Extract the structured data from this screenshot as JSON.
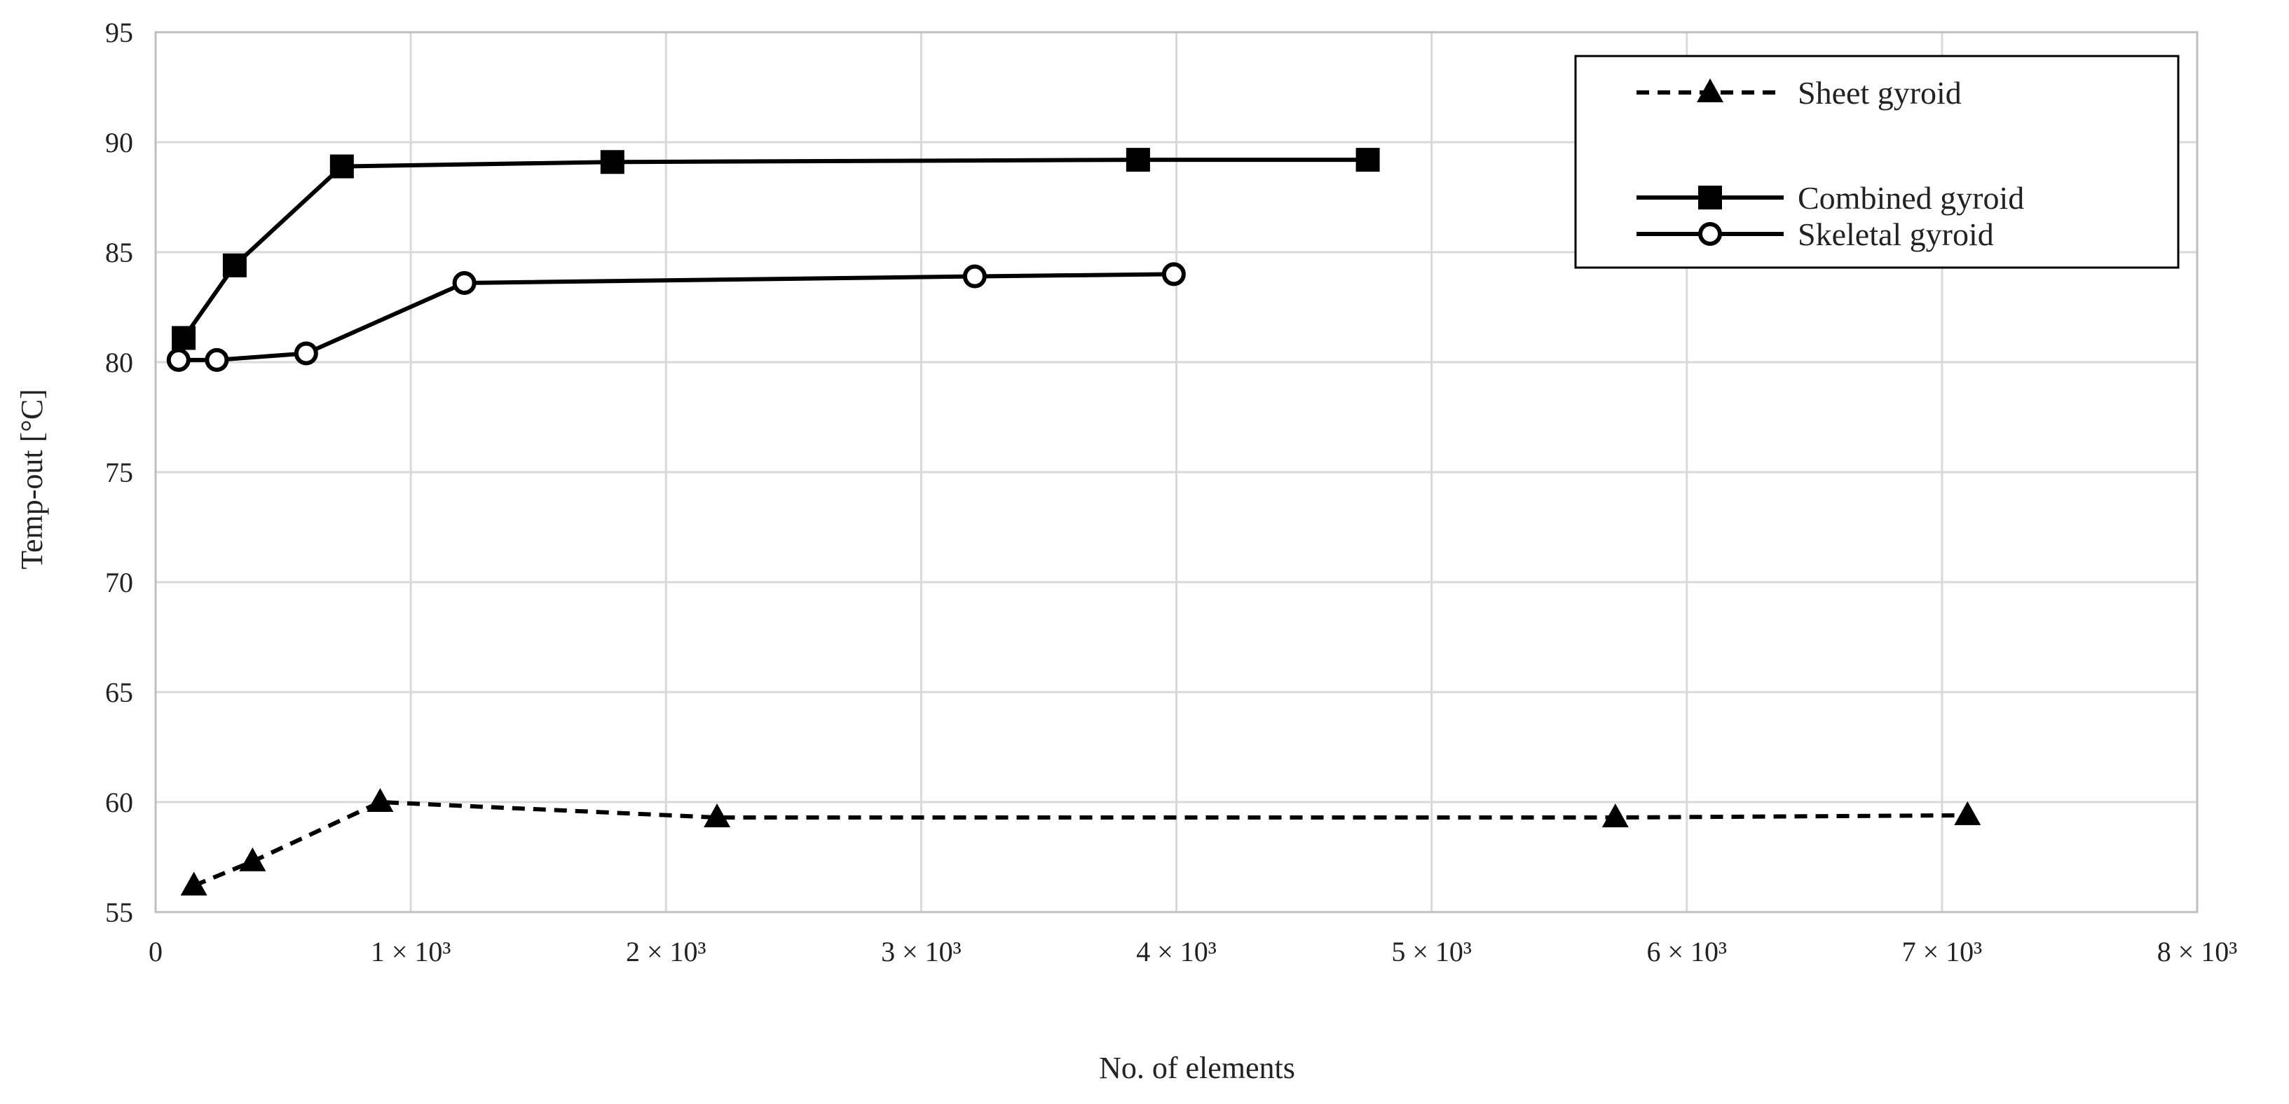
{
  "chart_data": {
    "type": "line",
    "title": "",
    "xlabel": "No. of elements",
    "ylabel": "Temp-out [°C]",
    "xlim": [
      0,
      8000
    ],
    "ylim": [
      55,
      95
    ],
    "grid": true,
    "legend_position": "top-right",
    "x_tick_values": [
      0,
      1000,
      2000,
      3000,
      4000,
      5000,
      6000,
      7000,
      8000
    ],
    "x_tick_labels": [
      "0",
      "1 × 10³",
      "2 × 10³",
      "3 × 10³",
      "4 × 10³",
      "5 × 10³",
      "6 × 10³",
      "7 × 10³",
      "8 × 10³"
    ],
    "y_tick_values": [
      55,
      60,
      65,
      70,
      75,
      80,
      85,
      90,
      95
    ],
    "y_tick_labels": [
      "55",
      "60",
      "65",
      "70",
      "75",
      "80",
      "85",
      "90",
      "95"
    ],
    "series": [
      {
        "name": "Sheet gyroid",
        "line_style": "dashed",
        "marker": "triangle",
        "color": "#000000",
        "x": [
          150,
          380,
          880,
          2200,
          5720,
          7100
        ],
        "y": [
          56.2,
          57.3,
          60.0,
          59.3,
          59.3,
          59.4
        ]
      },
      {
        "name": "Combined gyroid",
        "line_style": "solid",
        "marker": "square",
        "color": "#000000",
        "x": [
          110,
          310,
          730,
          1790,
          3850,
          4750
        ],
        "y": [
          81.1,
          84.4,
          88.9,
          89.1,
          89.2,
          89.2
        ]
      },
      {
        "name": "Skeletal gyroid",
        "line_style": "solid",
        "marker": "circle-open",
        "color": "#000000",
        "x": [
          90,
          240,
          590,
          1210,
          3210,
          3990
        ],
        "y": [
          80.1,
          80.1,
          80.4,
          83.6,
          83.9,
          84.0
        ]
      }
    ]
  }
}
